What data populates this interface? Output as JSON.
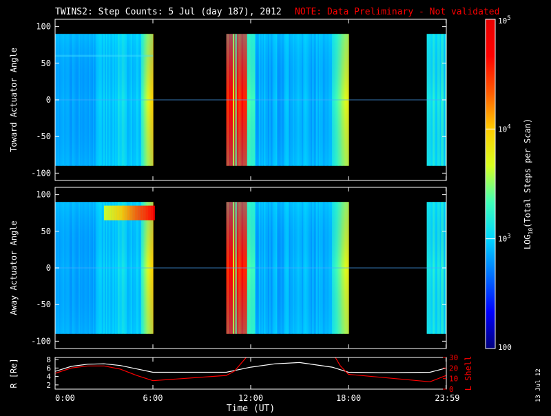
{
  "title": {
    "main": "TWINS2: Step Counts:  5 Jul (day 187), 2012",
    "note": "NOTE: Data Preliminary - Not validated"
  },
  "stamp": "13 Jul 12",
  "colors": {
    "background": "#000000",
    "text": "#ffffff",
    "note": "#ff0000",
    "r_line": "#ffffff",
    "lshell_line": "#ff0000"
  },
  "chart_data": [
    {
      "type": "heatmap",
      "name": "toward",
      "ylabel": "Toward Actuator Angle",
      "ylim": [
        -110,
        110
      ],
      "yticks": [
        100,
        50,
        0,
        -50,
        -100
      ],
      "x_unit": "hours UT",
      "xlim": [
        0,
        24
      ],
      "data_blocks": [
        {
          "start": 0.0,
          "end": 6.0
        },
        {
          "start": 10.5,
          "end": 18.0
        },
        {
          "start": 22.8,
          "end": 24.0
        }
      ],
      "angle_range": [
        -90,
        90
      ],
      "features": {
        "saturated_band_hours": [
          10.5,
          11.8
        ],
        "ramp_edges_hours": [
          5.3,
          17.0
        ]
      }
    },
    {
      "type": "heatmap",
      "name": "away",
      "ylabel": "Away Actuator Angle",
      "ylim": [
        -110,
        110
      ],
      "yticks": [
        100,
        50,
        0,
        -50,
        -100
      ],
      "x_unit": "hours UT",
      "xlim": [
        0,
        24
      ],
      "data_blocks": [
        {
          "start": 0.0,
          "end": 6.0
        },
        {
          "start": 10.5,
          "end": 18.0
        },
        {
          "start": 22.8,
          "end": 24.0
        }
      ],
      "angle_range": [
        -90,
        90
      ],
      "features": {
        "saturated_band_hours": [
          10.5,
          11.8
        ],
        "hot_spot": {
          "hours": [
            3.0,
            6.0
          ],
          "angle": [
            65,
            85
          ]
        }
      }
    },
    {
      "type": "line",
      "name": "orbit",
      "xlabel": "Time (UT)",
      "xticks": [
        "0:00",
        "6:00",
        "12:00",
        "18:00",
        "23:59"
      ],
      "xtick_hours": [
        0,
        6,
        12,
        18,
        23.98
      ],
      "xlim": [
        0,
        24
      ],
      "left_axis": {
        "label": "R [Re]",
        "ticks": [
          2,
          4,
          6,
          8
        ],
        "ylim": [
          1,
          8.5
        ]
      },
      "right_axis": {
        "label": "L Shell",
        "ticks": [
          0,
          10,
          20,
          30
        ],
        "ylim": [
          0,
          30
        ]
      },
      "series": [
        {
          "name": "R [Re]",
          "axis": "left",
          "x": [
            0,
            1,
            2,
            3,
            4,
            5,
            6,
            8,
            10.5,
            12,
            13.5,
            15,
            17,
            18,
            20,
            23,
            24
          ],
          "y": [
            5.2,
            6.4,
            6.9,
            7.0,
            6.6,
            5.8,
            5.0,
            5.0,
            5.0,
            6.2,
            7.0,
            7.3,
            6.2,
            5.0,
            4.9,
            5.0,
            6.0
          ]
        },
        {
          "name": "L Shell",
          "axis": "right",
          "x": [
            0,
            1,
            2,
            3,
            4,
            5,
            6,
            10.5,
            11,
            11.5,
            12,
            17,
            17.5,
            18,
            23,
            24
          ],
          "y": [
            15,
            20,
            22,
            22,
            19,
            13,
            8,
            13,
            17,
            26,
            35,
            35,
            22,
            14,
            7,
            13
          ]
        }
      ]
    }
  ],
  "colorbar": {
    "label": "LOG10(Total Steps per Scan)",
    "label_parts": [
      "LOG",
      "10",
      "(Total Steps per Scan)"
    ],
    "scale": "log",
    "range": [
      100,
      100000
    ],
    "tick_labels": [
      {
        "value": 100000,
        "base": "10",
        "exp": "5"
      },
      {
        "value": 10000,
        "base": "10",
        "exp": "4"
      },
      {
        "value": 1000,
        "base": "10",
        "exp": "3"
      },
      {
        "value": 100,
        "base": "100",
        "exp": ""
      }
    ],
    "colormap": [
      "#00007a",
      "#0000ff",
      "#0070ff",
      "#00d6ff",
      "#40ffb8",
      "#d8ff20",
      "#ffcc00",
      "#ff5a00",
      "#ff0000",
      "#e60000"
    ]
  }
}
